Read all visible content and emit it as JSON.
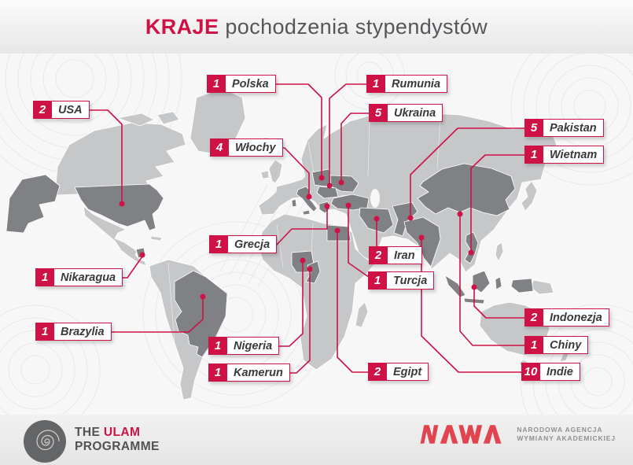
{
  "title": {
    "highlight": "KRAJE",
    "rest": "pochodzenia stypendystów"
  },
  "map": {
    "countries": [
      {
        "name": "Polska",
        "value": "1"
      },
      {
        "name": "Rumunia",
        "value": "1"
      },
      {
        "name": "USA",
        "value": "2"
      },
      {
        "name": "Ukraina",
        "value": "5"
      },
      {
        "name": "Pakistan",
        "value": "5"
      },
      {
        "name": "Włochy",
        "value": "4"
      },
      {
        "name": "Wietnam",
        "value": "1"
      },
      {
        "name": "Grecja",
        "value": "1"
      },
      {
        "name": "Iran",
        "value": "2"
      },
      {
        "name": "Nikaragua",
        "value": "1"
      },
      {
        "name": "Turcja",
        "value": "1"
      },
      {
        "name": "Indonezja",
        "value": "2"
      },
      {
        "name": "Brazylia",
        "value": "1"
      },
      {
        "name": "Chiny",
        "value": "1"
      },
      {
        "name": "Nigeria",
        "value": "1"
      },
      {
        "name": "Indie",
        "value": "10"
      },
      {
        "name": "Kamerun",
        "value": "1"
      },
      {
        "name": "Egipt",
        "value": "2"
      }
    ]
  },
  "footer": {
    "left": {
      "line1_prefix": "THE",
      "line1_highlight": "ULAM",
      "line2": "PROGRAMME",
      "logo_icon": "spiral-icon"
    },
    "right": {
      "logo_text": "NAWA",
      "agency_line1": "NARODOWA AGENCJA",
      "agency_line2": "WYMIANY AKADEMICKIEJ"
    }
  },
  "colors": {
    "accent": "#ce1245",
    "nawa_red": "#e1444e",
    "land": "#c6c7c9",
    "highlight": "#7f8184",
    "map_background": "#f7f7f8",
    "band": "#ececec",
    "title_text": "#55565a",
    "label_text": "#3a3a3c"
  }
}
